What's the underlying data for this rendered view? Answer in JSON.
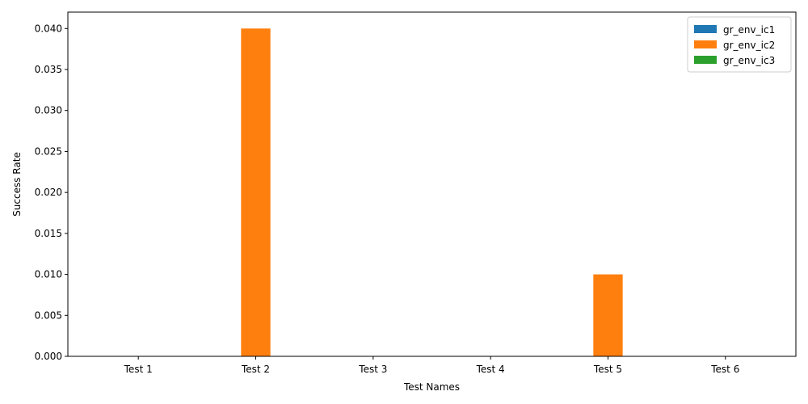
{
  "chart_data": {
    "type": "bar",
    "title": "",
    "xlabel": "Test Names",
    "ylabel": "Success Rate",
    "categories": [
      "Test 1",
      "Test 2",
      "Test 3",
      "Test 4",
      "Test 5",
      "Test 6"
    ],
    "series": [
      {
        "name": "gr_env_ic1",
        "color": "#1f77b4",
        "values": [
          0,
          0,
          0,
          0,
          0,
          0
        ]
      },
      {
        "name": "gr_env_ic2",
        "color": "#ff7f0e",
        "values": [
          0,
          0.04,
          0,
          0,
          0.01,
          0
        ]
      },
      {
        "name": "gr_env_ic3",
        "color": "#2ca02c",
        "values": [
          0,
          0,
          0,
          0,
          0,
          0
        ]
      }
    ],
    "ylim": [
      0,
      0.042
    ],
    "yticks": [
      0.0,
      0.005,
      0.01,
      0.015,
      0.02,
      0.025,
      0.03,
      0.035,
      0.04
    ],
    "ytick_labels": [
      "0.000",
      "0.005",
      "0.010",
      "0.015",
      "0.020",
      "0.025",
      "0.030",
      "0.035",
      "0.040"
    ],
    "grid": false,
    "legend_position": "top-right"
  }
}
